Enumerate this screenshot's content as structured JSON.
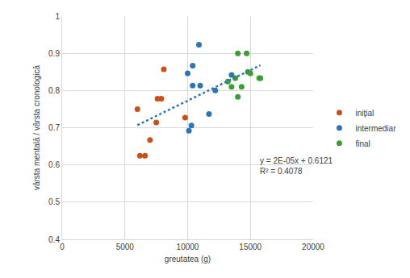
{
  "chart_data": {
    "type": "scatter",
    "x_label": "greutatea (g)",
    "y_label": "vârsta mentală / vârsta cronologică",
    "xlim": [
      0,
      20000
    ],
    "xticks": [
      0,
      5000,
      10000,
      15000,
      20000
    ],
    "ylim": [
      0.4,
      1
    ],
    "yticks": [
      0.4,
      0.5,
      0.6,
      0.7,
      0.8,
      0.9,
      1
    ],
    "grid": true,
    "legend": "right",
    "marker": "circle",
    "series": [
      {
        "name": "inițial",
        "color": "#c8511b",
        "x": [
          6000,
          6200,
          6600,
          7000,
          7500,
          7600,
          7900,
          8100,
          9800
        ],
        "values": [
          0.75,
          0.625,
          0.625,
          0.667,
          0.714,
          0.778,
          0.778,
          0.857,
          0.727
        ]
      },
      {
        "name": "intermediar",
        "color": "#2e75b6",
        "x": [
          10000,
          10100,
          10300,
          10400,
          10400,
          10900,
          11000,
          11700,
          12200,
          13500
        ],
        "values": [
          0.846,
          0.692,
          0.706,
          0.867,
          0.813,
          0.923,
          0.813,
          0.737,
          0.8,
          0.842
        ]
      },
      {
        "name": "final",
        "color": "#3f9b35",
        "x": [
          13200,
          13500,
          13800,
          14000,
          14000,
          14300,
          14700,
          14800,
          15000,
          15700,
          15800
        ],
        "values": [
          0.824,
          0.81,
          0.833,
          0.9,
          0.783,
          0.81,
          0.9,
          0.85,
          0.846,
          0.833,
          0.833
        ]
      }
    ],
    "trendline": {
      "x": [
        6000,
        15800
      ],
      "values": [
        0.707,
        0.868
      ],
      "color": "#2e75b6",
      "line_style": "dot"
    },
    "annotations": [
      "y = 2E-05x + 0.6121",
      "R² = 0.4078"
    ]
  }
}
